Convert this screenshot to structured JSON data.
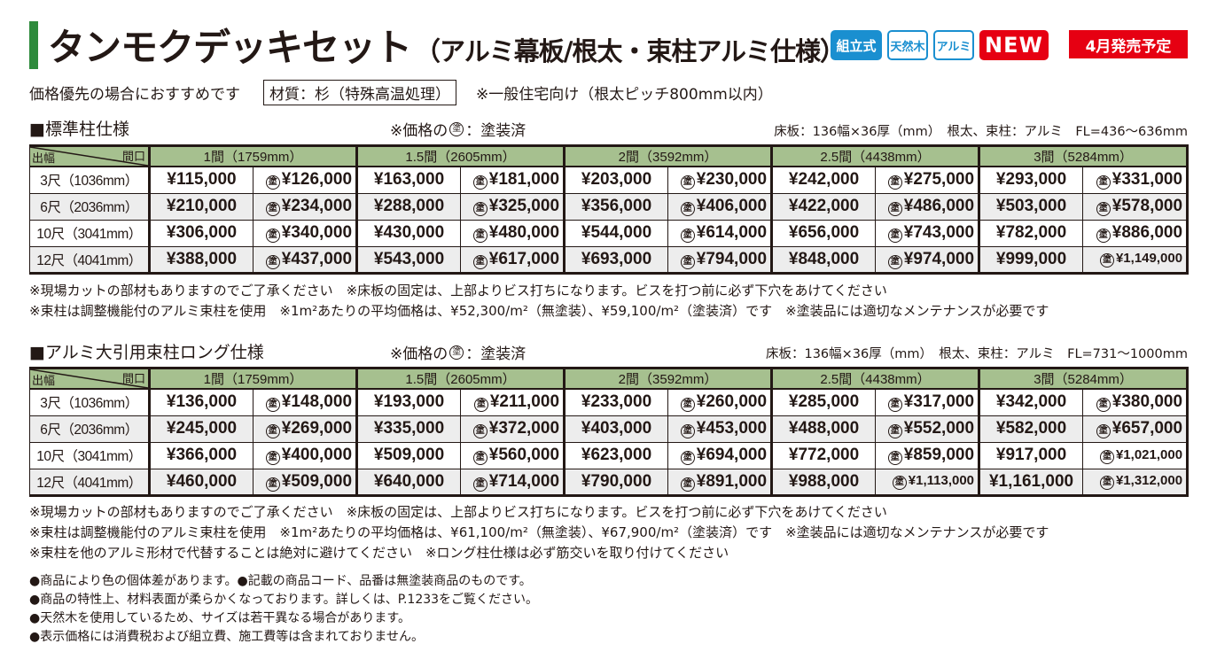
{
  "header": {
    "title": "タンモクデッキセット",
    "subtitle": "（アルミ幕板/根太・束柱アルミ仕様）",
    "badges": [
      "組立式",
      "天然木",
      "アルミ",
      "NEW"
    ],
    "release": "4月発売予定",
    "recommend": "価格優先の場合におすすめです",
    "material": "材質：杉（特殊高温処理）",
    "general": "※一般住宅向け（根太ピッチ800mm以内）"
  },
  "colors": {
    "title_bar": "#2e8b3c",
    "header_green": "#a6c08f",
    "badge_blue": "#1a8fd0",
    "badge_red": "#e60012",
    "row_alt": "#ededed"
  },
  "nuri_symbol": "塗",
  "sections": [
    {
      "title": "■標準柱仕様",
      "price_note_prefix": "※価格の",
      "price_note_suffix": "：塗装済",
      "spec": "床板：136幅×36厚（mm）　根太、束柱：アルミ　FL=436〜636mm",
      "corner_top": "間口",
      "corner_bottom": "出幅",
      "columns": [
        "1間（1759mm）",
        "1.5間（2605mm）",
        "2間（3592mm）",
        "2.5間（4438mm）",
        "3間（5284mm）"
      ],
      "rows": [
        {
          "label": "3尺（1036mm）",
          "prices": [
            "¥115,000",
            "¥126,000",
            "¥163,000",
            "¥181,000",
            "¥203,000",
            "¥230,000",
            "¥242,000",
            "¥275,000",
            "¥293,000",
            "¥331,000"
          ]
        },
        {
          "label": "6尺（2036mm）",
          "prices": [
            "¥210,000",
            "¥234,000",
            "¥288,000",
            "¥325,000",
            "¥356,000",
            "¥406,000",
            "¥422,000",
            "¥486,000",
            "¥503,000",
            "¥578,000"
          ]
        },
        {
          "label": "10尺（3041mm）",
          "prices": [
            "¥306,000",
            "¥340,000",
            "¥430,000",
            "¥480,000",
            "¥544,000",
            "¥614,000",
            "¥656,000",
            "¥743,000",
            "¥782,000",
            "¥886,000"
          ]
        },
        {
          "label": "12尺（4041mm）",
          "prices": [
            "¥388,000",
            "¥437,000",
            "¥543,000",
            "¥617,000",
            "¥693,000",
            "¥794,000",
            "¥848,000",
            "¥974,000",
            "¥999,000",
            "¥1,149,000"
          ]
        }
      ],
      "notes": [
        "※現場カットの部材もありますのでご了承ください　※床板の固定は、上部よりビス打ちになります。ビスを打つ前に必ず下穴をあけてください",
        "※束柱は調整機能付のアルミ束柱を使用　※1m²あたりの平均価格は、¥52,300/m²（無塗装）、¥59,100/m²（塗装済）です　※塗装品には適切なメンテナンスが必要です"
      ]
    },
    {
      "title": "■アルミ大引用束柱ロング仕様",
      "price_note_prefix": "※価格の",
      "price_note_suffix": "：塗装済",
      "spec": "床板：136幅×36厚（mm）　根太、束柱：アルミ　FL=731〜1000mm",
      "corner_top": "間口",
      "corner_bottom": "出幅",
      "columns": [
        "1間（1759mm）",
        "1.5間（2605mm）",
        "2間（3592mm）",
        "2.5間（4438mm）",
        "3間（5284mm）"
      ],
      "rows": [
        {
          "label": "3尺（1036mm）",
          "prices": [
            "¥136,000",
            "¥148,000",
            "¥193,000",
            "¥211,000",
            "¥233,000",
            "¥260,000",
            "¥285,000",
            "¥317,000",
            "¥342,000",
            "¥380,000"
          ]
        },
        {
          "label": "6尺（2036mm）",
          "prices": [
            "¥245,000",
            "¥269,000",
            "¥335,000",
            "¥372,000",
            "¥403,000",
            "¥453,000",
            "¥488,000",
            "¥552,000",
            "¥582,000",
            "¥657,000"
          ]
        },
        {
          "label": "10尺（3041mm）",
          "prices": [
            "¥366,000",
            "¥400,000",
            "¥509,000",
            "¥560,000",
            "¥623,000",
            "¥694,000",
            "¥772,000",
            "¥859,000",
            "¥917,000",
            "¥1,021,000"
          ]
        },
        {
          "label": "12尺（4041mm）",
          "prices": [
            "¥460,000",
            "¥509,000",
            "¥640,000",
            "¥714,000",
            "¥790,000",
            "¥891,000",
            "¥988,000",
            "¥1,113,000",
            "¥1,161,000",
            "¥1,312,000"
          ]
        }
      ],
      "notes": [
        "※現場カットの部材もありますのでご了承ください　※床板の固定は、上部よりビス打ちになります。ビスを打つ前に必ず下穴をあけてください",
        "※束柱は調整機能付のアルミ束柱を使用　※1m²あたりの平均価格は、¥61,100/m²（無塗装）、¥67,900/m²（塗装済）です　※塗装品には適切なメンテナンスが必要です",
        "※束柱を他のアルミ形材で代替することは絶対に避けてください　※ロング柱仕様は必ず筋交いを取り付けてください"
      ]
    }
  ],
  "footer": [
    "●商品により色の個体差があります。●記載の商品コード、品番は無塗装商品のものです。",
    "●商品の特性上、材料表面が柔らかくなっております。詳しくは、P.1233をご覧ください。",
    "●天然木を使用しているため、サイズは若干異なる場合があります。",
    "●表示価格には消費税および組立費、施工費等は含まれておりません。"
  ]
}
